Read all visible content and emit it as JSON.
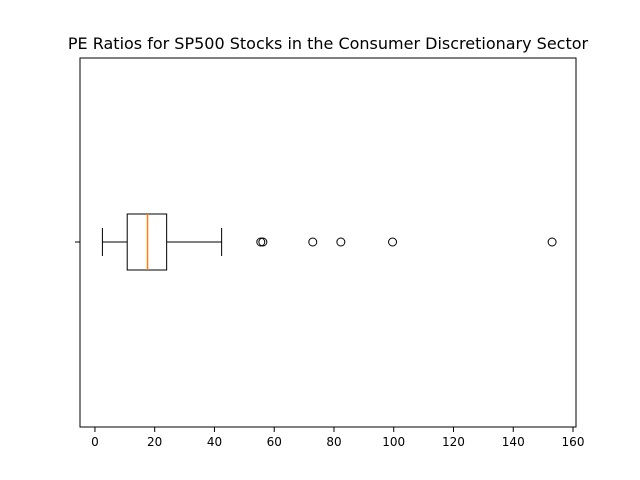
{
  "chart_data": {
    "type": "boxplot",
    "orientation": "horizontal",
    "title": "PE Ratios for SP500 Stocks in the Consumer Discretionary Sector",
    "xlabel": "",
    "ylabel": "",
    "xlim": [
      -5,
      161
    ],
    "xticks": [
      0,
      20,
      40,
      60,
      80,
      100,
      120,
      140,
      160
    ],
    "xtick_labels": [
      "0",
      "20",
      "40",
      "60",
      "80",
      "100",
      "120",
      "140",
      "160"
    ],
    "grid": false,
    "box": {
      "whisker_low": 2.5,
      "q1": 10.8,
      "median": 17.6,
      "q3": 24.0,
      "whisker_high": 42.4,
      "outliers": [
        55.5,
        56.2,
        72.9,
        82.3,
        99.6,
        153.0
      ]
    },
    "colors": {
      "box": "#000000",
      "median": "#ff7f0e",
      "outlier_edge": "#000000"
    }
  }
}
